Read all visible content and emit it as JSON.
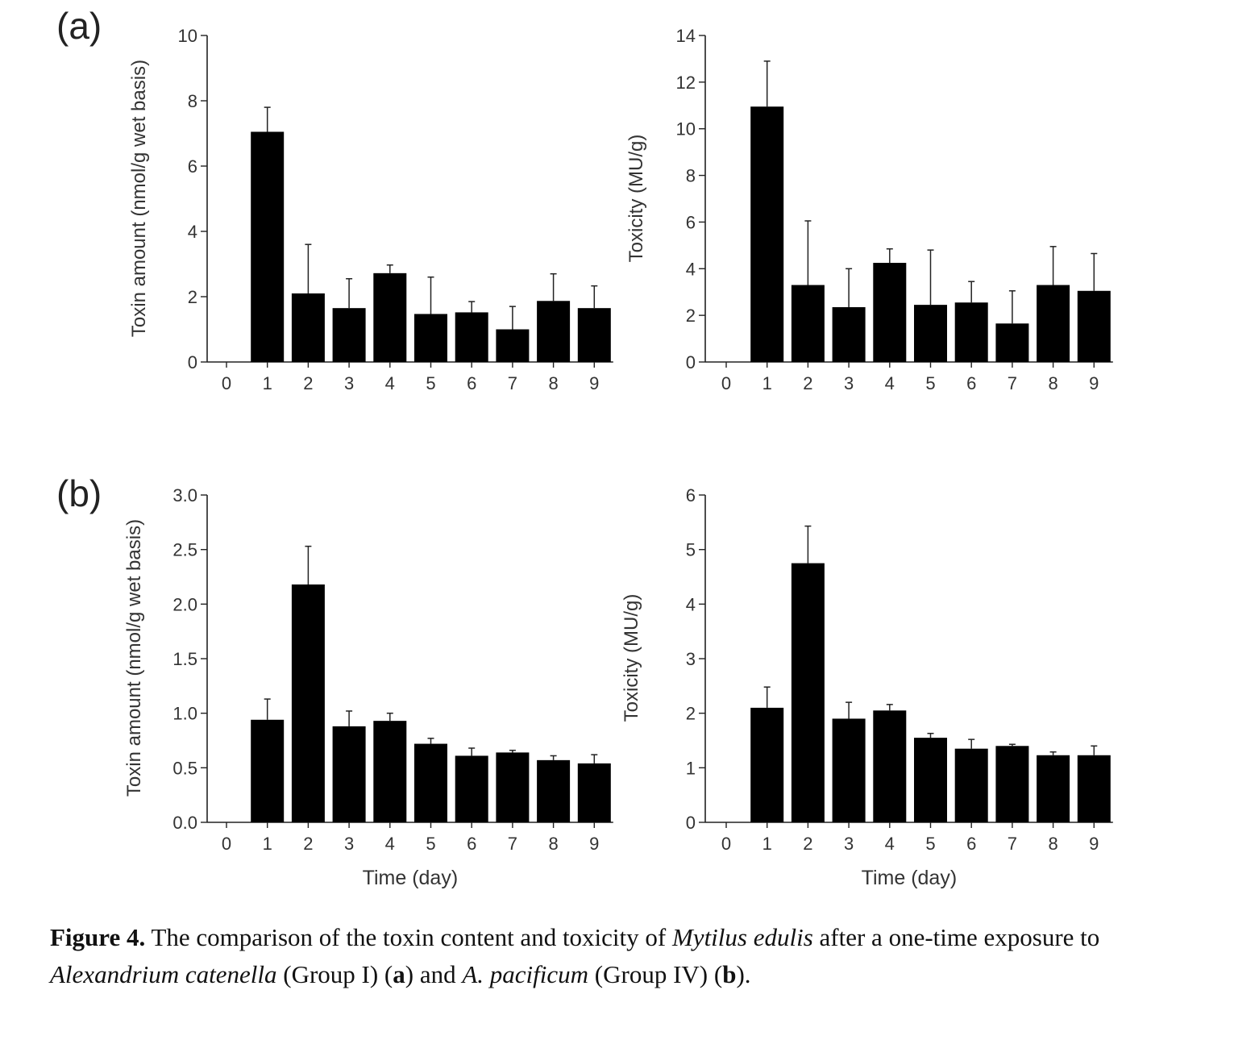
{
  "panels": [
    {
      "label": "(a)"
    },
    {
      "label": "(b)"
    }
  ],
  "chart_data": [
    {
      "type": "bar",
      "panel": "(a)",
      "categories": [
        "0",
        "1",
        "2",
        "3",
        "4",
        "5",
        "6",
        "7",
        "8",
        "9"
      ],
      "values": [
        0,
        7.05,
        2.1,
        1.65,
        2.72,
        1.47,
        1.52,
        1.0,
        1.87,
        1.65
      ],
      "errors": [
        0,
        0.75,
        1.5,
        0.9,
        0.25,
        1.13,
        0.33,
        0.7,
        0.83,
        0.68
      ],
      "xlabel": "",
      "ylabel": "Toxin amount (nmol/g wet basis)",
      "ylim": [
        0,
        10
      ],
      "yticks": [
        "0",
        "2",
        "4",
        "6",
        "8",
        "10"
      ],
      "grid": false,
      "color": "#000000"
    },
    {
      "type": "bar",
      "panel": "(a)",
      "categories": [
        "0",
        "1",
        "2",
        "3",
        "4",
        "5",
        "6",
        "7",
        "8",
        "9"
      ],
      "values": [
        0,
        10.95,
        3.3,
        2.35,
        4.25,
        2.45,
        2.55,
        1.65,
        3.3,
        3.05
      ],
      "errors": [
        0,
        1.95,
        2.75,
        1.65,
        0.6,
        2.35,
        0.9,
        1.4,
        1.65,
        1.6
      ],
      "xlabel": "",
      "ylabel": "Toxicity (MU/g)",
      "ylim": [
        0,
        14
      ],
      "yticks": [
        "0",
        "2",
        "4",
        "6",
        "8",
        "10",
        "12",
        "14"
      ],
      "grid": false,
      "color": "#000000"
    },
    {
      "type": "bar",
      "panel": "(b)",
      "categories": [
        "0",
        "1",
        "2",
        "3",
        "4",
        "5",
        "6",
        "7",
        "8",
        "9"
      ],
      "values": [
        0,
        0.94,
        2.18,
        0.88,
        0.93,
        0.72,
        0.61,
        0.64,
        0.57,
        0.54
      ],
      "errors": [
        0,
        0.19,
        0.35,
        0.14,
        0.07,
        0.05,
        0.07,
        0.02,
        0.04,
        0.08
      ],
      "xlabel": "Time (day)",
      "ylabel": "Toxin amount (nmol/g wet basis)",
      "ylim": [
        0,
        3.0
      ],
      "yticks": [
        "0.0",
        "0.5",
        "1.0",
        "1.5",
        "2.0",
        "2.5",
        "3.0"
      ],
      "grid": false,
      "color": "#000000"
    },
    {
      "type": "bar",
      "panel": "(b)",
      "categories": [
        "0",
        "1",
        "2",
        "3",
        "4",
        "5",
        "6",
        "7",
        "8",
        "9"
      ],
      "values": [
        0,
        2.1,
        4.75,
        1.9,
        2.05,
        1.55,
        1.35,
        1.4,
        1.23,
        1.23
      ],
      "errors": [
        0,
        0.38,
        0.68,
        0.3,
        0.11,
        0.08,
        0.17,
        0.03,
        0.06,
        0.17
      ],
      "xlabel": "Time (day)",
      "ylabel": "Toxicity (MU/g)",
      "ylim": [
        0,
        6
      ],
      "yticks": [
        "0",
        "1",
        "2",
        "3",
        "4",
        "5",
        "6"
      ],
      "grid": false,
      "color": "#000000"
    }
  ],
  "caption": {
    "label": "Figure 4.",
    "text1": " The comparison of the toxin content and toxicity of ",
    "species1": "Mytilus edulis",
    "text2": " after a one-time exposure to ",
    "species2": "Alexandrium catenella",
    "text3": " (Group I) (",
    "ref_a": "a",
    "text4": ") and ",
    "species3": "A. pacificum",
    "text5": " (Group IV) (",
    "ref_b": "b",
    "text6": ")."
  }
}
